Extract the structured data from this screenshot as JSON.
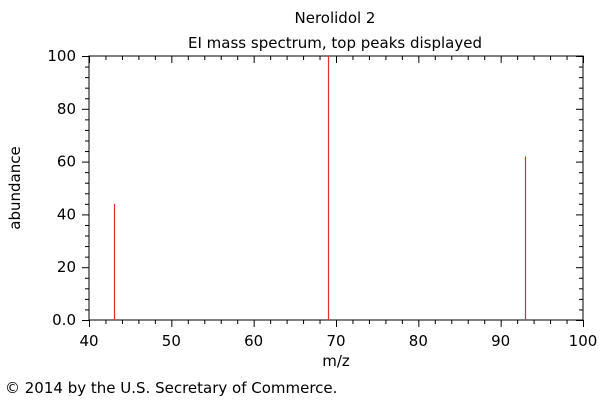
{
  "chart_data": {
    "type": "bar",
    "title": "Nerolidol 2",
    "subtitle": "EI mass spectrum, top peaks displayed",
    "xlabel": "m/z",
    "ylabel": "abundance",
    "xlim": [
      40,
      100
    ],
    "ylim": [
      0,
      100
    ],
    "x_ticks": [
      "40",
      "50",
      "60",
      "70",
      "80",
      "90",
      "100"
    ],
    "y_ticks": [
      "0.0",
      "20",
      "40",
      "60",
      "80",
      "100"
    ],
    "grid": false,
    "series": [
      {
        "x": [
          43,
          69,
          93
        ],
        "values": [
          44,
          100,
          62
        ],
        "color": "#e03030"
      }
    ]
  },
  "footer": {
    "copyright": "© 2014 by the U.S. Secretary of Commerce."
  }
}
